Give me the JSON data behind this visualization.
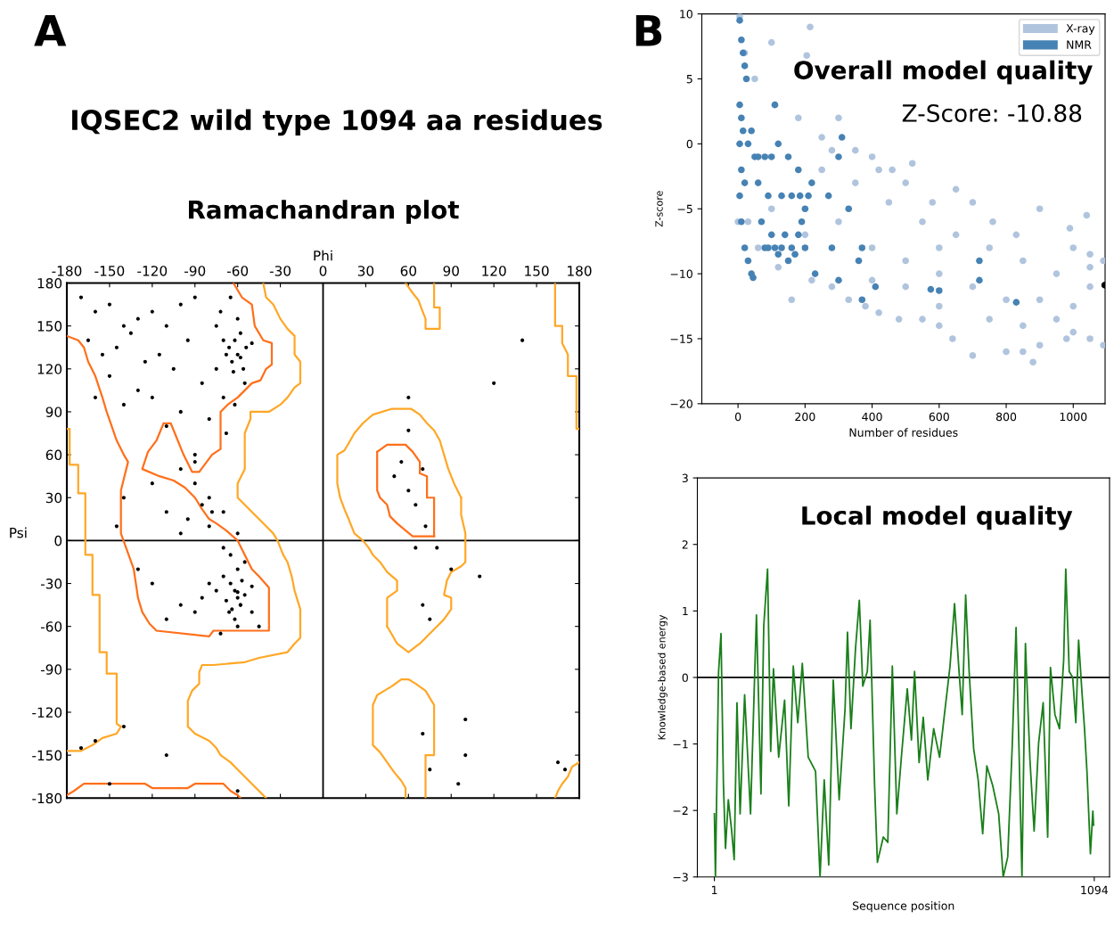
{
  "chart_data": [
    {
      "type": "scatter",
      "title": "Ramachandran plot",
      "xlabel": "Phi",
      "ylabel": "Psi",
      "annotations": [
        "A",
        "IQSEC2 wild type 1094 aa residues"
      ],
      "xlim": [
        -180,
        180
      ],
      "ylim": [
        -180,
        180
      ],
      "xticks": [
        -180,
        -150,
        -120,
        -90,
        -60,
        -30,
        0,
        30,
        60,
        90,
        120,
        150,
        180
      ],
      "yticks": [
        -180,
        -150,
        -120,
        -90,
        -60,
        -30,
        0,
        30,
        60,
        90,
        120,
        150,
        180
      ],
      "ref_lines": [
        {
          "axis": "x",
          "value": 0,
          "color": "#000000"
        },
        {
          "axis": "y",
          "value": 0,
          "color": "#000000"
        }
      ],
      "grid": false,
      "series": [
        {
          "type": "line",
          "color": "#ff6f1a",
          "x": [
            -63,
            -57,
            -50,
            -48,
            -42,
            -36,
            -36,
            -40,
            -44,
            -50,
            -55,
            -60,
            -67,
            -72,
            -72,
            -78,
            -87,
            -92,
            -98,
            -107,
            -112,
            -117,
            -123,
            -127,
            -115,
            -105,
            -97,
            -90,
            -85,
            -80,
            -75,
            -68,
            -60,
            -55,
            -50,
            -45,
            -38,
            -38,
            -77,
            -80,
            -117,
            -122,
            -127,
            -130,
            -133,
            -142,
            -142,
            -137,
            -140,
            -145,
            -152,
            -155,
            -160,
            -165,
            -168,
            -172,
            -180
          ],
          "values": [
            180,
            170,
            165,
            150,
            140,
            138,
            123,
            120,
            112,
            110,
            105,
            100,
            95,
            90,
            64,
            60,
            48,
            48,
            60,
            82,
            82,
            70,
            62,
            50,
            45,
            42,
            37,
            30,
            22,
            15,
            12,
            7,
            0,
            -10,
            -20,
            -25,
            -33,
            -63,
            -63,
            -67,
            -63,
            -58,
            -50,
            -40,
            -20,
            5,
            35,
            55,
            60,
            70,
            90,
            100,
            115,
            125,
            135,
            140,
            143
          ]
        },
        {
          "type": "line",
          "color": "#ff6f1a",
          "x": [
            -180,
            -175,
            -168,
            -125,
            -120,
            -95,
            -90,
            -70,
            -65,
            -60,
            -58
          ],
          "values": [
            -178,
            -175,
            -170,
            -170,
            -173,
            -173,
            -170,
            -170,
            -175,
            -178,
            -180
          ]
        },
        {
          "type": "line",
          "color": "#ff6f1a",
          "x": [
            38,
            45,
            58,
            63,
            68,
            68,
            73,
            73,
            78,
            78
          ],
          "values": [
            62,
            67,
            67,
            62,
            55,
            47,
            45,
            30,
            30,
            3
          ]
        },
        {
          "type": "line",
          "color": "#ff6f1a",
          "x": [
            78,
            63,
            58,
            52,
            47,
            45,
            40,
            38,
            38
          ],
          "values": [
            3,
            3,
            7,
            12,
            17,
            25,
            30,
            35,
            62
          ]
        },
        {
          "type": "line",
          "color": "#ffa726",
          "x": [
            -180,
            -178,
            -178,
            -172,
            -172,
            -167,
            -167,
            -162,
            -162,
            -157,
            -157,
            -152,
            -152,
            -145,
            -145,
            -142,
            -145,
            -155,
            -162,
            -170,
            -180
          ],
          "values": [
            78,
            78,
            53,
            53,
            33,
            33,
            -10,
            -10,
            -38,
            -38,
            -78,
            -78,
            -93,
            -93,
            -128,
            -130,
            -135,
            -138,
            -143,
            -147,
            -147
          ]
        },
        {
          "type": "line",
          "color": "#ffa726",
          "x": [
            -42,
            -40,
            -35,
            -30,
            -25,
            -20,
            -20,
            -16,
            -16,
            -20,
            -25,
            -30,
            -38,
            -51,
            -51,
            -55,
            -55,
            -60,
            -60,
            -55,
            -50,
            -45,
            -40,
            -35,
            -32,
            -28,
            -25,
            -22,
            -20,
            -16,
            -16,
            -20,
            -25,
            -45,
            -55,
            -77,
            -85,
            -87,
            -87,
            -92,
            -95,
            -95,
            -90,
            -80,
            -75,
            -72,
            -65,
            -60,
            -55,
            -50,
            -45,
            -40
          ],
          "values": [
            180,
            170,
            165,
            155,
            148,
            143,
            130,
            125,
            110,
            107,
            100,
            95,
            90,
            90,
            85,
            75,
            50,
            40,
            30,
            25,
            20,
            15,
            10,
            5,
            0,
            -10,
            -15,
            -25,
            -35,
            -48,
            -68,
            -72,
            -78,
            -82,
            -85,
            -87,
            -87,
            -92,
            -100,
            -105,
            -112,
            -130,
            -135,
            -140,
            -145,
            -150,
            -155,
            -160,
            -165,
            -170,
            -175,
            -180
          ]
        },
        {
          "type": "line",
          "color": "#ffa726",
          "x": [
            58,
            63,
            67,
            70,
            72,
            72,
            82,
            82,
            78,
            78
          ],
          "values": [
            180,
            173,
            168,
            160,
            155,
            148,
            148,
            163,
            163,
            180
          ]
        },
        {
          "type": "line",
          "color": "#ffa726",
          "x": [
            163,
            163,
            168,
            168,
            172,
            172,
            178,
            178,
            180
          ],
          "values": [
            180,
            150,
            150,
            138,
            130,
            115,
            115,
            78,
            78
          ]
        },
        {
          "type": "line",
          "color": "#ffa726",
          "x": [
            180,
            175,
            172,
            168,
            165,
            163
          ],
          "values": [
            -155,
            -158,
            -165,
            -170,
            -175,
            -180
          ]
        },
        {
          "type": "line",
          "color": "#ffa726",
          "x": [
            45,
            45,
            52,
            52,
            45,
            40,
            35,
            32,
            28,
            22,
            18,
            15,
            12,
            10,
            10,
            15,
            18,
            22,
            28,
            35,
            48,
            62,
            68,
            73,
            78,
            82,
            85,
            88,
            92,
            97
          ],
          "values": [
            -60,
            -40,
            -35,
            -28,
            -22,
            -15,
            -10,
            -5,
            0,
            5,
            15,
            22,
            30,
            40,
            60,
            63,
            68,
            75,
            82,
            88,
            92,
            92,
            88,
            82,
            77,
            70,
            60,
            50,
            40,
            30
          ]
        },
        {
          "type": "line",
          "color": "#ffa726",
          "x": [
            97,
            97,
            100,
            100,
            97,
            90,
            87,
            85,
            90,
            90,
            85,
            80,
            75,
            68,
            60,
            52,
            48,
            45
          ],
          "values": [
            30,
            18,
            5,
            -15,
            -18,
            -22,
            -28,
            -38,
            -40,
            -48,
            -55,
            -60,
            -65,
            -72,
            -78,
            -72,
            -65,
            -60
          ]
        },
        {
          "type": "line",
          "color": "#ffa726",
          "x": [
            72,
            72,
            78,
            78,
            75,
            72,
            65,
            60,
            55,
            48,
            43,
            38,
            35,
            35,
            40,
            45,
            50,
            55,
            58,
            58
          ],
          "values": [
            -180,
            -150,
            -150,
            -115,
            -110,
            -105,
            -100,
            -97,
            -97,
            -102,
            -105,
            -108,
            -115,
            -143,
            -148,
            -155,
            -162,
            -168,
            -173,
            -180
          ]
        },
        {
          "type": "scatter",
          "color": "#000000",
          "marker": "circle",
          "x": [
            -170,
            -160,
            -150,
            -140,
            -130,
            -120,
            -110,
            -100,
            -90,
            -165,
            -155,
            -145,
            -135,
            -125,
            -115,
            -105,
            -95,
            -85,
            -160,
            -140,
            -120,
            -100,
            -80,
            -150,
            -130,
            -110,
            -90,
            -75,
            -70,
            -68,
            -66,
            -64,
            -62,
            -60,
            -58,
            -56,
            -54,
            -72,
            -65,
            -60,
            -55,
            -70,
            -63,
            -58,
            -50,
            -75,
            -68,
            -62,
            -78,
            -80,
            -85,
            -90,
            -95,
            -100,
            -110,
            -140,
            -145,
            -120,
            -100,
            -90,
            -80,
            -70,
            -60,
            -65,
            -60,
            -55,
            -70,
            -65,
            -62,
            -60,
            -58,
            -55,
            -50,
            -68,
            -64,
            -60,
            -57,
            -66,
            -62,
            -58,
            -75,
            -80,
            -85,
            -90,
            -100,
            -110,
            -120,
            -130,
            -70,
            -60,
            -72,
            -50,
            -45,
            -160,
            -170,
            -150,
            -140,
            -110,
            -60,
            50,
            55,
            60,
            65,
            70,
            72,
            60,
            65,
            80,
            90,
            110,
            120,
            140,
            60,
            70,
            75,
            70,
            75,
            95,
            100,
            100,
            170,
            165
          ],
          "values": [
            170,
            160,
            165,
            150,
            155,
            160,
            150,
            165,
            170,
            140,
            130,
            135,
            145,
            125,
            130,
            120,
            140,
            110,
            100,
            95,
            100,
            90,
            85,
            115,
            105,
            80,
            60,
            150,
            140,
            130,
            135,
            125,
            140,
            130,
            145,
            120,
            135,
            160,
            170,
            155,
            110,
            100,
            118,
            128,
            138,
            120,
            75,
            95,
            20,
            10,
            25,
            40,
            15,
            5,
            20,
            30,
            10,
            40,
            50,
            55,
            30,
            20,
            5,
            -10,
            -20,
            -15,
            -25,
            -30,
            -35,
            -40,
            -45,
            -38,
            -32,
            -42,
            -48,
            -36,
            -28,
            -50,
            -55,
            -45,
            -35,
            -30,
            -40,
            -50,
            -45,
            -55,
            -30,
            -20,
            -5,
            -60,
            -65,
            -50,
            -60,
            -140,
            -145,
            -170,
            -130,
            -150,
            -175,
            45,
            55,
            35,
            25,
            50,
            10,
            77,
            -5,
            -5,
            -20,
            -25,
            110,
            140,
            100,
            -45,
            -55,
            -135,
            -160,
            -170,
            -150,
            -125,
            -160,
            -155
          ]
        }
      ]
    },
    {
      "type": "scatter",
      "xlabel": "Number of residues",
      "ylabel": "Z-score",
      "annotations": [
        "B",
        "Overall model quality",
        "Z-Score: -10.88"
      ],
      "xlim": [
        -108,
        1095
      ],
      "ylim": [
        -20,
        10
      ],
      "xticks": [
        0,
        200,
        400,
        600,
        800,
        1000
      ],
      "yticks": [
        {
          "value": -20,
          "label": "−20"
        },
        {
          "value": -15,
          "label": "−15"
        },
        {
          "value": -10,
          "label": "−10"
        },
        {
          "value": -5,
          "label": "−5"
        },
        0,
        5,
        10
      ],
      "legend": "top right",
      "grid": false,
      "marker": "circle",
      "series": [
        {
          "name": "X-ray",
          "color": "#b0c4de",
          "x": [
            5,
            20,
            50,
            100,
            110,
            180,
            215,
            205,
            280,
            300,
            350,
            400,
            420,
            460,
            520,
            580,
            650,
            700,
            760,
            830,
            900,
            990,
            1000,
            1050,
            1090,
            1090,
            1050,
            980,
            900,
            880,
            850,
            800,
            700,
            640,
            600,
            550,
            480,
            420,
            380,
            330,
            280,
            220,
            160,
            120,
            60,
            30,
            100,
            200,
            300,
            400,
            500,
            600,
            700,
            800,
            900,
            1000,
            1050,
            950,
            850,
            750,
            650,
            550,
            450,
            350,
            250,
            500,
            600,
            750,
            850,
            950,
            1000,
            400,
            500,
            0,
            250,
            600,
            1040,
            1050
          ],
          "values": [
            9.8,
            7,
            5,
            7.8,
            3,
            2,
            9,
            6.8,
            -0.5,
            2,
            -0.5,
            -1,
            -2,
            -2,
            -1.5,
            -4.5,
            -3.5,
            -4.5,
            -6,
            -7,
            -5,
            -6.5,
            -8,
            -9.5,
            -9,
            -15.5,
            -15,
            -15,
            -15.5,
            -16.8,
            -16,
            -16,
            -16.3,
            -15,
            -14,
            -13.5,
            -13.5,
            -13,
            -12.5,
            -12,
            -11,
            -10.5,
            -12,
            -9.5,
            -8,
            -6,
            -5,
            -7,
            -6,
            -8,
            -9,
            -10,
            -11,
            -12,
            -12,
            -12.5,
            -11,
            -10,
            -9,
            -8,
            -7,
            -6,
            -4.5,
            -3,
            -2,
            -11,
            -12.5,
            -13.5,
            -14,
            -13.5,
            -14.5,
            -10.5,
            -3,
            -6,
            0.5,
            -8,
            -5.5,
            -8.5
          ]
        },
        {
          "name": "NMR",
          "color": "#4682b4",
          "x": [
            5,
            10,
            15,
            20,
            25,
            5,
            10,
            15,
            5,
            10,
            5,
            10,
            20,
            30,
            40,
            20,
            30,
            40,
            50,
            60,
            70,
            80,
            90,
            100,
            110,
            120,
            130,
            140,
            150,
            160,
            170,
            180,
            190,
            200,
            210,
            220,
            230,
            200,
            180,
            150,
            120,
            100,
            80,
            60,
            90,
            130,
            160,
            110,
            270,
            280,
            300,
            330,
            360,
            370,
            370,
            300,
            410,
            575,
            600,
            720,
            720,
            830,
            310,
            185,
            45
          ],
          "values": [
            9.5,
            8,
            7,
            6,
            5,
            3,
            2,
            1,
            0,
            -2,
            -4,
            -6,
            -8,
            -9,
            -10,
            -3,
            0,
            1,
            -1,
            -3,
            -6,
            -8,
            -8,
            -7,
            -8,
            -8.5,
            -8,
            -7,
            -9,
            -8,
            -8.5,
            -7,
            -6,
            -5,
            -4,
            -3,
            -10,
            -8,
            -2,
            -1,
            0,
            -1,
            -1,
            -1,
            -4,
            -4,
            -4,
            3,
            -4,
            -8,
            -1,
            -5,
            -9,
            -12,
            -8,
            -10.5,
            -11,
            -11.2,
            -11.3,
            -10.5,
            -9,
            -12.2,
            0.5,
            -4,
            -10.3
          ]
        },
        {
          "color": "#000000",
          "x": [
            1094
          ],
          "values": [
            -10.88
          ]
        }
      ]
    },
    {
      "type": "line",
      "xlabel": "Sequence position",
      "ylabel": "Knowledge-based energy",
      "annotations": [
        "Local model quality"
      ],
      "xlim": [
        -48,
        1138
      ],
      "ylim": [
        -3,
        3
      ],
      "xticks": [
        1,
        1094
      ],
      "yticks": [
        {
          "value": -3,
          "label": "−3"
        },
        {
          "value": -2,
          "label": "−2"
        },
        {
          "value": -1,
          "label": "−1"
        },
        0,
        1,
        2,
        3
      ],
      "ref_lines": [
        {
          "axis": "y",
          "value": 0,
          "color": "#000000"
        }
      ],
      "grid": false,
      "marker": "none",
      "line_style": "solid",
      "series": [
        {
          "color": "#1a7f1a",
          "x": [
            1,
            4,
            13,
            20,
            27,
            33,
            41,
            50,
            58,
            66,
            75,
            88,
            105,
            122,
            135,
            143,
            154,
            163,
            171,
            186,
            203,
            215,
            228,
            241,
            254,
            271,
            292,
            305,
            317,
            330,
            343,
            360,
            377,
            384,
            394,
            407,
            418,
            428,
            441,
            449,
            462,
            470,
            487,
            500,
            513,
            526,
            539,
            556,
            568,
            577,
            590,
            602,
            615,
            632,
            649,
            662,
            679,
            692,
            705,
            714,
            724,
            734,
            747,
            760,
            773,
            785,
            802,
            819,
            832,
            845,
            858,
            869,
            878,
            886,
            896,
            909,
            921,
            934,
            947,
            960,
            968,
            981,
            994,
            1006,
            1012,
            1022,
            1032,
            1041,
            1049,
            1058,
            1066,
            1073,
            1083,
            1090,
            1092
          ],
          "values": [
            -2.05,
            -3,
            0.08,
            0.66,
            -1.6,
            -2.57,
            -1.84,
            -2.27,
            -2.74,
            -0.38,
            -2.05,
            -0.26,
            -2.05,
            0.94,
            -1.75,
            0.77,
            1.63,
            -1.11,
            0.13,
            -1.2,
            -0.34,
            -1.93,
            0.17,
            -0.68,
            0.21,
            -1.2,
            -1.41,
            -3,
            -1.54,
            -2.82,
            -0.04,
            -1.84,
            -0.47,
            0.68,
            -0.77,
            0.43,
            1.16,
            -0.13,
            0.09,
            0.86,
            -1.63,
            -2.78,
            -2.4,
            -2.48,
            0.17,
            -2.05,
            -1.2,
            -0.17,
            -0.94,
            0.09,
            -1.28,
            -0.6,
            -1.54,
            -0.77,
            -1.2,
            -0.6,
            0.17,
            1.11,
            0.09,
            -0.56,
            1.24,
            0.09,
            -1.07,
            -1.54,
            -2.35,
            -1.33,
            -1.63,
            -2.05,
            -3,
            -2.7,
            -1.03,
            0.75,
            -1.2,
            -3,
            0.51,
            -1.24,
            -2.31,
            -0.98,
            -0.38,
            -2.4,
            0.15,
            -0.56,
            -0.77,
            0.26,
            1.63,
            0.09,
            0,
            -0.68,
            0.56,
            -0.17,
            -0.77,
            -1.41,
            -2.65,
            -2.01,
            -2.22
          ]
        }
      ]
    }
  ]
}
